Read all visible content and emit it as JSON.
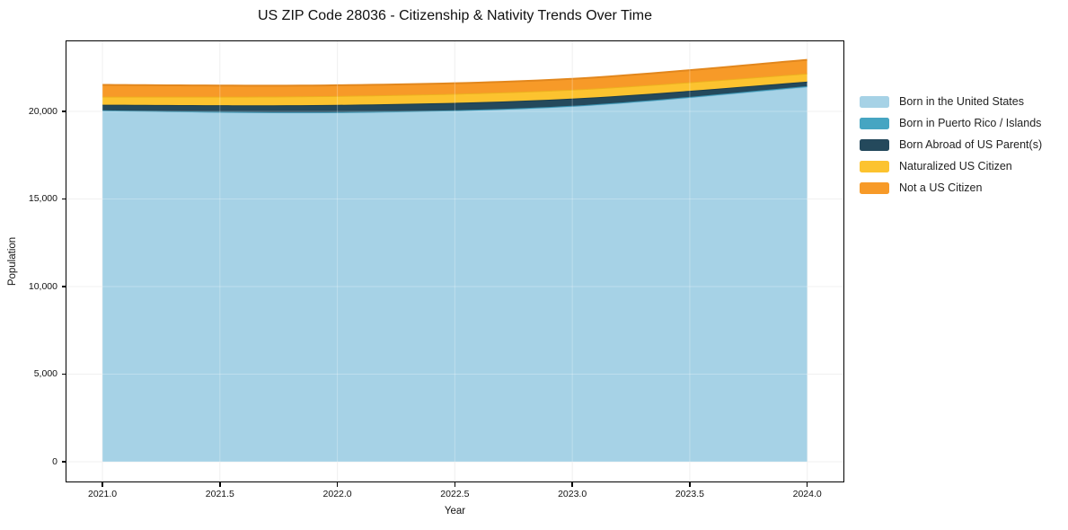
{
  "figure": {
    "title": "US ZIP Code 28036 - Citizenship & Nativity Trends Over Time",
    "xlabel": "Year",
    "ylabel": "Population"
  },
  "chart_data": {
    "type": "area",
    "stacked": true,
    "title": "US ZIP Code 28036 - Citizenship & Nativity Trends Over Time",
    "xlabel": "Year",
    "ylabel": "Population",
    "x": [
      2021,
      2022,
      2023,
      2024
    ],
    "series": [
      {
        "name": "Born in the United States",
        "color": "#a6d2e6",
        "edge": "#8cc3dc",
        "values": [
          20050,
          19950,
          20300,
          21400
        ]
      },
      {
        "name": "Born in Puerto Rico / Islands",
        "color": "#46a5c2",
        "edge": "#3a93b0",
        "values": [
          10,
          10,
          20,
          40
        ]
      },
      {
        "name": "Born Abroad of US Parent(s)",
        "color": "#24495c",
        "edge": "#1c3d4c",
        "values": [
          320,
          410,
          410,
          260
        ]
      },
      {
        "name": "Naturalized US Citizen",
        "color": "#fcc32f",
        "edge": "#edb01f",
        "values": [
          460,
          510,
          510,
          460
        ]
      },
      {
        "name": "Not a US Citizen",
        "color": "#f79a28",
        "edge": "#e2871d",
        "values": [
          670,
          610,
          620,
          780
        ]
      }
    ],
    "xticks": {
      "values": [
        2021.0,
        2021.5,
        2022.0,
        2022.5,
        2023.0,
        2023.5,
        2024.0
      ],
      "labels": [
        "2021.0",
        "2021.5",
        "2022.0",
        "2022.5",
        "2023.0",
        "2023.5",
        "2024.0"
      ]
    },
    "yticks": {
      "values": [
        0,
        5000,
        10000,
        15000,
        20000
      ],
      "labels": [
        "0",
        "5,000",
        "10,000",
        "15,000",
        "20,000"
      ]
    },
    "xlim": [
      2020.843,
      2024.158
    ],
    "ylim": [
      -1180,
      24050
    ],
    "grid": true,
    "legend_position": "right",
    "smooth": true
  },
  "colors": {
    "background": "#ffffff",
    "grid": "#ebebeb",
    "spine": "#000000",
    "text": "#111111"
  }
}
